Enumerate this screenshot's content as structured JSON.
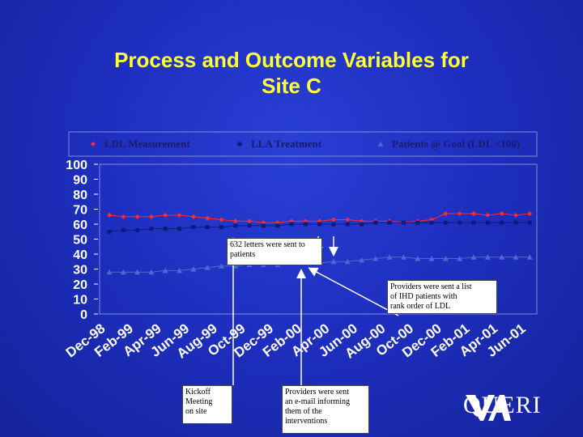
{
  "slide": {
    "title_line1": "Process and Outcome Variables for",
    "title_line2": "Site C"
  },
  "colors": {
    "background": "#1e2fc0",
    "title": "#ffff33",
    "ldl_measurement": "#ff2a2a",
    "lla_treatment": "#0a1a80",
    "patients_goal": "#4a6ad0",
    "axis_text": "#ffffff"
  },
  "annotations": {
    "letters": "632 letters were sent to patients",
    "providers_list_lines": [
      "Providers were sent a list",
      "of IHD patients with",
      "rank order of LDL"
    ],
    "kickoff_lines": [
      "Kickoff",
      "Meeting",
      "on site"
    ],
    "email_lines": [
      "Providers were sent",
      "an e-mail informing",
      "them of the",
      "interventions"
    ]
  },
  "logo": {
    "text": "QUERI",
    "icon": "va-logo-icon"
  },
  "chart_data": {
    "type": "line",
    "categories": [
      "Dec-98",
      "Feb-99",
      "Apr-99",
      "Jun-99",
      "Aug-99",
      "Oct-99",
      "Dec-99",
      "Feb-00",
      "Apr-00",
      "Jun-00",
      "Aug-00",
      "Oct-00",
      "Dec-00",
      "Feb-01",
      "Apr-01",
      "Jun-01"
    ],
    "ylim": [
      0,
      100
    ],
    "yticks": [
      100,
      90,
      80,
      70,
      60,
      50,
      40,
      30,
      20,
      10,
      0
    ],
    "legend_position": "top",
    "grid": false,
    "series": [
      {
        "name": "LDL Measurement",
        "marker": "diamond",
        "color": "#ff2a2a",
        "x": [
          0,
          0.5,
          1,
          1.5,
          2,
          2.5,
          3,
          3.5,
          4,
          4.5,
          5,
          5.5,
          6,
          6.5,
          7,
          7.5,
          8,
          8.5,
          9,
          9.5,
          10,
          10.5,
          11,
          11.5,
          12,
          12.5,
          13,
          13.5,
          14,
          14.5,
          15
        ],
        "values": [
          66,
          65,
          65,
          65,
          66,
          66,
          65,
          64,
          63,
          62,
          62,
          61,
          61,
          62,
          62,
          62,
          63,
          63,
          62,
          62,
          62,
          61,
          62,
          63,
          67,
          67,
          67,
          66,
          67,
          66,
          67
        ]
      },
      {
        "name": "LLA Treatment",
        "marker": "square",
        "color": "#0a1a80",
        "x": [
          0,
          0.5,
          1,
          1.5,
          2,
          2.5,
          3,
          3.5,
          4,
          4.5,
          5,
          5.5,
          6,
          6.5,
          7,
          7.5,
          8,
          8.5,
          9,
          9.5,
          10,
          10.5,
          11,
          11.5,
          12,
          12.5,
          13,
          13.5,
          14,
          14.5,
          15
        ],
        "values": [
          55,
          56,
          56,
          57,
          57,
          57,
          58,
          58,
          58,
          59,
          59,
          59,
          59,
          60,
          60,
          60,
          60,
          60,
          60,
          61,
          61,
          61,
          61,
          61,
          61,
          61,
          61,
          61,
          61,
          61,
          61
        ]
      },
      {
        "name": "Patients @ Goal (LDL <100)",
        "marker": "triangle",
        "color": "#4a6ad0",
        "x": [
          0,
          0.5,
          1,
          1.5,
          2,
          2.5,
          3,
          3.5,
          4,
          4.5,
          5,
          5.5,
          6,
          6.5,
          7,
          7.5,
          8,
          8.5,
          9,
          9.5,
          10,
          10.5,
          11,
          11.5,
          12,
          12.5,
          13,
          13.5,
          14,
          14.5,
          15
        ],
        "values": [
          28,
          28,
          28,
          28,
          29,
          29,
          30,
          31,
          32,
          32,
          33,
          33,
          33,
          34,
          34,
          34,
          35,
          35,
          36,
          37,
          38,
          38,
          37,
          37,
          37,
          37,
          38,
          38,
          38,
          38,
          38
        ]
      }
    ]
  }
}
